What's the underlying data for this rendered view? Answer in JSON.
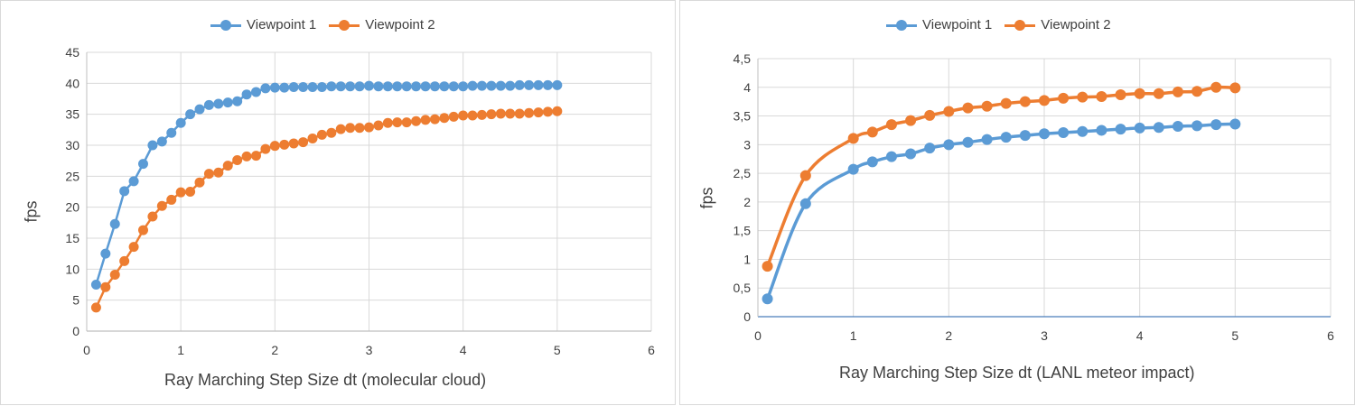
{
  "chart_data": [
    {
      "type": "line",
      "title": "",
      "xlabel": "Ray Marching Step Size dt (molecular cloud)",
      "ylabel": "fps",
      "xlim": [
        0,
        6
      ],
      "ylim": [
        0,
        45
      ],
      "xticks": [
        0,
        1,
        2,
        3,
        4,
        5,
        6
      ],
      "xtick_labels": [
        "0",
        "1",
        "2",
        "3",
        "4",
        "5",
        "6"
      ],
      "yticks": [
        0,
        5,
        10,
        15,
        20,
        25,
        30,
        35,
        40,
        45
      ],
      "ytick_labels": [
        "0",
        "5",
        "10",
        "15",
        "20",
        "25",
        "30",
        "35",
        "40",
        "45"
      ],
      "grid": true,
      "legend_position": "top",
      "smooth": false,
      "series": [
        {
          "name": "Viewpoint 1",
          "color": "#5b9bd5",
          "x": [
            0.1,
            0.2,
            0.3,
            0.4,
            0.5,
            0.6,
            0.7,
            0.8,
            0.9,
            1.0,
            1.1,
            1.2,
            1.3,
            1.4,
            1.5,
            1.6,
            1.7,
            1.8,
            1.9,
            2.0,
            2.1,
            2.2,
            2.3,
            2.4,
            2.5,
            2.6,
            2.7,
            2.8,
            2.9,
            3.0,
            3.1,
            3.2,
            3.3,
            3.4,
            3.5,
            3.6,
            3.7,
            3.8,
            3.9,
            4.0,
            4.1,
            4.2,
            4.3,
            4.4,
            4.5,
            4.6,
            4.7,
            4.8,
            4.9,
            5.0
          ],
          "y": [
            7.5,
            12.5,
            17.3,
            22.6,
            24.2,
            27.0,
            30.0,
            30.6,
            32.0,
            33.6,
            35.0,
            35.8,
            36.5,
            36.7,
            36.9,
            37.1,
            38.2,
            38.6,
            39.2,
            39.3,
            39.3,
            39.4,
            39.4,
            39.4,
            39.4,
            39.5,
            39.5,
            39.5,
            39.5,
            39.6,
            39.5,
            39.5,
            39.5,
            39.5,
            39.5,
            39.5,
            39.5,
            39.5,
            39.5,
            39.5,
            39.6,
            39.6,
            39.6,
            39.6,
            39.6,
            39.7,
            39.7,
            39.7,
            39.7,
            39.7
          ]
        },
        {
          "name": "Viewpoint 2",
          "color": "#ed7d31",
          "x": [
            0.1,
            0.2,
            0.3,
            0.4,
            0.5,
            0.6,
            0.7,
            0.8,
            0.9,
            1.0,
            1.1,
            1.2,
            1.3,
            1.4,
            1.5,
            1.6,
            1.7,
            1.8,
            1.9,
            2.0,
            2.1,
            2.2,
            2.3,
            2.4,
            2.5,
            2.6,
            2.7,
            2.8,
            2.9,
            3.0,
            3.1,
            3.2,
            3.3,
            3.4,
            3.5,
            3.6,
            3.7,
            3.8,
            3.9,
            4.0,
            4.1,
            4.2,
            4.3,
            4.4,
            4.5,
            4.6,
            4.7,
            4.8,
            4.9,
            5.0
          ],
          "y": [
            3.8,
            7.1,
            9.1,
            11.3,
            13.6,
            16.3,
            18.5,
            20.2,
            21.2,
            22.4,
            22.5,
            24.0,
            25.4,
            25.6,
            26.7,
            27.6,
            28.2,
            28.3,
            29.4,
            29.9,
            30.1,
            30.3,
            30.5,
            31.1,
            31.7,
            32.0,
            32.6,
            32.8,
            32.8,
            32.9,
            33.2,
            33.6,
            33.7,
            33.7,
            33.9,
            34.1,
            34.2,
            34.4,
            34.6,
            34.8,
            34.8,
            34.9,
            35.0,
            35.1,
            35.1,
            35.1,
            35.2,
            35.3,
            35.4,
            35.5
          ]
        }
      ]
    },
    {
      "type": "line",
      "title": "",
      "xlabel": "Ray Marching Step Size dt (LANL meteor impact)",
      "ylabel": "fps",
      "xlim": [
        0,
        6
      ],
      "ylim": [
        0,
        4.5
      ],
      "xticks": [
        0,
        1,
        2,
        3,
        4,
        5,
        6
      ],
      "xtick_labels": [
        "0",
        "1",
        "2",
        "3",
        "4",
        "5",
        "6"
      ],
      "yticks": [
        0,
        0.5,
        1,
        1.5,
        2,
        2.5,
        3,
        3.5,
        4,
        4.5
      ],
      "ytick_labels": [
        "0",
        "0,5",
        "1",
        "1,5",
        "2",
        "2,5",
        "3",
        "3,5",
        "4",
        "4,5"
      ],
      "grid": true,
      "legend_position": "top",
      "smooth": true,
      "series": [
        {
          "name": "Viewpoint 1",
          "color": "#5b9bd5",
          "x": [
            0.1,
            0.5,
            1.0,
            1.2,
            1.4,
            1.6,
            1.8,
            2.0,
            2.2,
            2.4,
            2.6,
            2.8,
            3.0,
            3.2,
            3.4,
            3.6,
            3.8,
            4.0,
            4.2,
            4.4,
            4.6,
            4.8,
            5.0
          ],
          "y": [
            0.31,
            1.97,
            2.57,
            2.7,
            2.79,
            2.84,
            2.94,
            3.0,
            3.04,
            3.09,
            3.13,
            3.16,
            3.19,
            3.21,
            3.23,
            3.25,
            3.27,
            3.29,
            3.3,
            3.32,
            3.33,
            3.35,
            3.36
          ]
        },
        {
          "name": "Viewpoint 2",
          "color": "#ed7d31",
          "x": [
            0.1,
            0.5,
            1.0,
            1.2,
            1.4,
            1.6,
            1.8,
            2.0,
            2.2,
            2.4,
            2.6,
            2.8,
            3.0,
            3.2,
            3.4,
            3.6,
            3.8,
            4.0,
            4.2,
            4.4,
            4.6,
            4.8,
            5.0
          ],
          "y": [
            0.88,
            2.46,
            3.11,
            3.22,
            3.35,
            3.42,
            3.51,
            3.58,
            3.64,
            3.67,
            3.72,
            3.75,
            3.77,
            3.81,
            3.83,
            3.84,
            3.87,
            3.89,
            3.89,
            3.92,
            3.93,
            4.0,
            3.99
          ]
        }
      ]
    }
  ]
}
